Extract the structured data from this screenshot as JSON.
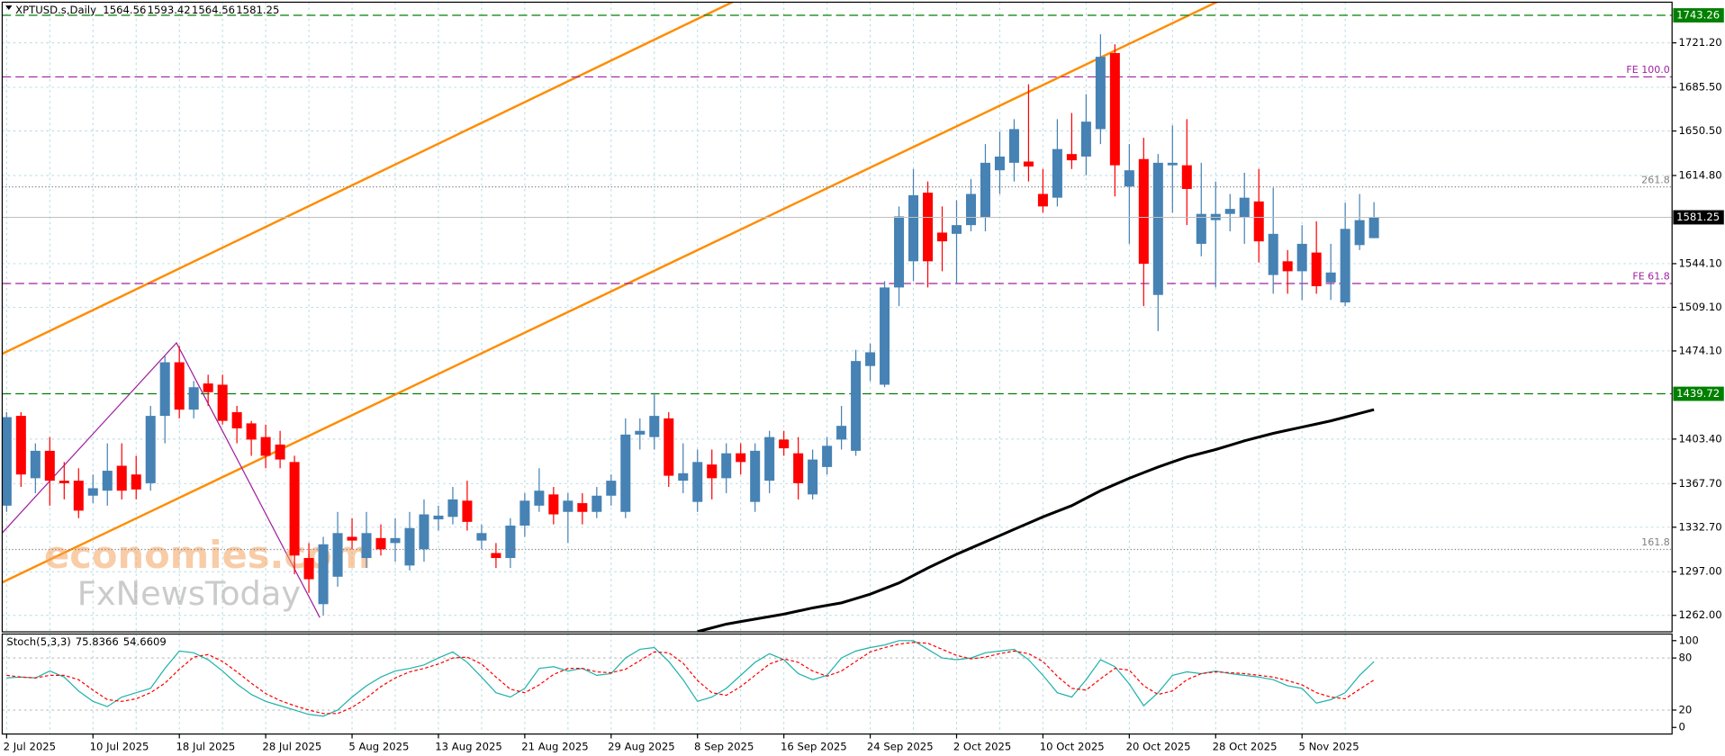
{
  "chart_data": [
    {
      "type": "candlestick",
      "title": "XPTUSD.s,Daily",
      "categories": [
        "2 Jul 2025",
        null,
        null,
        null,
        null,
        null,
        "10 Jul 2025",
        null,
        null,
        null,
        null,
        null,
        "18 Jul 2025",
        null,
        null,
        null,
        null,
        null,
        "28 Jul 2025",
        null,
        null,
        null,
        null,
        null,
        "5 Aug 2025",
        null,
        null,
        null,
        null,
        null,
        "13 Aug 2025",
        null,
        null,
        null,
        null,
        null,
        "21 Aug 2025",
        null,
        null,
        null,
        null,
        null,
        "29 Aug 2025",
        null,
        null,
        null,
        null,
        null,
        "8 Sep 2025",
        null,
        null,
        null,
        null,
        null,
        "16 Sep 2025",
        null,
        null,
        null,
        null,
        null,
        "24 Sep 2025",
        null,
        null,
        null,
        null,
        null,
        "2 Oct 2025",
        null,
        null,
        null,
        null,
        null,
        "10 Oct 2025",
        null,
        null,
        null,
        null,
        null,
        "20 Oct 2025",
        null,
        null,
        null,
        null,
        null,
        "28 Oct 2025",
        null,
        null,
        null,
        null,
        null,
        "5 Nov 2025",
        null,
        null,
        null,
        null,
        null
      ],
      "open": [
        1350,
        1422,
        1372,
        1394,
        1370,
        1370,
        1358,
        1362,
        1382,
        1375,
        1368,
        1422,
        1465,
        1427,
        1448,
        1447,
        1425,
        1416,
        1405,
        1399,
        1385,
        1308,
        1271,
        1293,
        1325,
        1308,
        1324,
        1320,
        1302,
        1315,
        1339,
        1341,
        1354,
        1322,
        1312,
        1308,
        1334,
        1350,
        1359,
        1345,
        1352,
        1345,
        1358,
        1345,
        1407,
        1405,
        1420,
        1370,
        1353,
        1383,
        1372,
        1392,
        1353,
        1370,
        1403,
        1392,
        1359,
        1381,
        1403,
        1394,
        1462,
        1447,
        1525,
        1546,
        1601,
        1569,
        1568,
        1575,
        1581,
        1619,
        1625,
        1626,
        1600,
        1597,
        1632,
        1630,
        1652,
        1713,
        1606,
        1628,
        1519,
        1623,
        1623,
        1560,
        1579,
        1584,
        1581,
        1594,
        1535,
        1546,
        1538,
        1553,
        1529,
        1513,
        1559,
        1564.56
      ],
      "high": [
        1425,
        1425,
        1400,
        1405,
        1385,
        1380,
        1375,
        1400,
        1400,
        1390,
        1430,
        1470,
        1478,
        1450,
        1455,
        1455,
        1430,
        1418,
        1415,
        1410,
        1390,
        1320,
        1325,
        1345,
        1340,
        1345,
        1335,
        1340,
        1345,
        1355,
        1350,
        1365,
        1370,
        1335,
        1320,
        1340,
        1360,
        1380,
        1365,
        1360,
        1360,
        1365,
        1375,
        1420,
        1420,
        1440,
        1425,
        1400,
        1395,
        1395,
        1400,
        1400,
        1400,
        1410,
        1410,
        1405,
        1395,
        1405,
        1430,
        1475,
        1480,
        1530,
        1590,
        1620,
        1610,
        1590,
        1595,
        1612,
        1640,
        1650,
        1660,
        1688,
        1620,
        1660,
        1665,
        1680,
        1728,
        1720,
        1640,
        1645,
        1632,
        1655,
        1660,
        1625,
        1610,
        1600,
        1617,
        1620,
        1605,
        1555,
        1575,
        1578,
        1560,
        1593,
        1600,
        1593.42
      ],
      "low": [
        1345,
        1365,
        1360,
        1350,
        1355,
        1340,
        1352,
        1350,
        1355,
        1355,
        1362,
        1400,
        1420,
        1420,
        1430,
        1415,
        1400,
        1390,
        1380,
        1380,
        1295,
        1280,
        1262,
        1285,
        1315,
        1300,
        1310,
        1305,
        1298,
        1305,
        1330,
        1335,
        1330,
        1315,
        1300,
        1300,
        1325,
        1345,
        1335,
        1320,
        1335,
        1340,
        1350,
        1340,
        1395,
        1395,
        1365,
        1360,
        1345,
        1355,
        1360,
        1375,
        1345,
        1360,
        1390,
        1355,
        1355,
        1375,
        1395,
        1390,
        1450,
        1445,
        1510,
        1530,
        1525,
        1538,
        1528,
        1570,
        1570,
        1600,
        1610,
        1610,
        1585,
        1590,
        1620,
        1615,
        1640,
        1598,
        1560,
        1510,
        1490,
        1585,
        1575,
        1550,
        1525,
        1570,
        1560,
        1545,
        1520,
        1520,
        1515,
        1520,
        1515,
        1510,
        1555,
        1564.56
      ],
      "close": [
        1421,
        1375,
        1394,
        1370,
        1368,
        1346,
        1364,
        1378,
        1362,
        1363,
        1422,
        1465,
        1427,
        1445,
        1441,
        1418,
        1412,
        1403,
        1390,
        1387,
        1310,
        1291,
        1319,
        1328,
        1322,
        1328,
        1315,
        1324,
        1332,
        1343,
        1342,
        1355,
        1337,
        1328,
        1308,
        1334,
        1354,
        1362,
        1343,
        1354,
        1345,
        1358,
        1370,
        1407,
        1410,
        1422,
        1374,
        1376,
        1385,
        1372,
        1392,
        1385,
        1394,
        1405,
        1396,
        1368,
        1387,
        1398,
        1414,
        1466,
        1473,
        1525,
        1582,
        1599,
        1546,
        1562,
        1575,
        1600,
        1625,
        1630,
        1652,
        1622,
        1590,
        1636,
        1627,
        1658,
        1710,
        1623,
        1619,
        1544,
        1625,
        1625,
        1604,
        1584,
        1584,
        1588,
        1597,
        1562,
        1568,
        1538,
        1560,
        1526,
        1537,
        1572,
        1579,
        1581.25
      ],
      "up_color": "#4682b4",
      "down_color": "#ff0000",
      "moving_average": {
        "color": "#000000",
        "values": [
          null,
          null,
          null,
          null,
          null,
          null,
          null,
          null,
          null,
          null,
          null,
          null,
          null,
          null,
          null,
          null,
          null,
          null,
          null,
          null,
          null,
          null,
          null,
          null,
          null,
          null,
          null,
          null,
          null,
          null,
          null,
          null,
          null,
          null,
          null,
          null,
          null,
          null,
          null,
          null,
          null,
          null,
          null,
          null,
          null,
          null,
          null,
          null,
          1249,
          1252,
          1255,
          1257,
          1259,
          1261,
          1263,
          1265.5,
          1268,
          1270,
          1272,
          1275.5,
          1279,
          1283.5,
          1288,
          1294,
          1300,
          1305.5,
          1311,
          1316,
          1321,
          1326,
          1331,
          1336,
          1341,
          1345.5,
          1350,
          1356,
          1362,
          1367,
          1372,
          1376.5,
          1381,
          1385,
          1389,
          1392,
          1395,
          1398.5,
          1402,
          1405,
          1408,
          1410.5,
          1413,
          1415.5,
          1418,
          1421,
          1424,
          1427
        ]
      },
      "ylim": [
        1248.8,
        1753.8
      ],
      "yticks": [
        {
          "value": 1262,
          "label": "1262.00"
        },
        {
          "value": 1297,
          "label": "1297.00"
        },
        {
          "value": 1332.7,
          "label": "1332.70"
        },
        {
          "value": 1367.7,
          "label": "1367.70"
        },
        {
          "value": 1403.4,
          "label": "1403.40"
        },
        {
          "value": 1474.1,
          "label": "1474.10"
        },
        {
          "value": 1509.1,
          "label": "1509.10"
        },
        {
          "value": 1544.1,
          "label": "1544.10"
        },
        {
          "value": 1614.8,
          "label": "1614.80"
        },
        {
          "value": 1650.5,
          "label": "1650.50"
        },
        {
          "value": 1685.5,
          "label": "1685.50"
        },
        {
          "value": 1721.2,
          "label": "1721.20"
        }
      ],
      "grid": true,
      "hlines": [
        {
          "value": 1743.26,
          "color": "#008000"
        },
        {
          "value": 1439.72,
          "color": "#008000"
        }
      ],
      "levels": [
        {
          "label": "FE 100.0",
          "value": 1693.9,
          "color": "#a020a0"
        },
        {
          "label": "261.8",
          "value": 1605.7,
          "color": "#808080"
        },
        {
          "label": "FE 61.8",
          "value": 1528.2,
          "color": "#a020a0"
        },
        {
          "label": "161.8",
          "value": 1314.9,
          "color": "#808080"
        }
      ],
      "watermark": [
        "economies.com",
        "FxNewsToday"
      ]
    },
    {
      "type": "line",
      "title": "Stoch(5,3,3)",
      "series": [
        {
          "color": "#20b2aa",
          "values": [
            57,
            58,
            57,
            65,
            58,
            42,
            30,
            24,
            35,
            40,
            45,
            68,
            88,
            86,
            78,
            65,
            50,
            38,
            30,
            25,
            20,
            15,
            13,
            20,
            35,
            48,
            58,
            65,
            68,
            72,
            80,
            87,
            75,
            58,
            40,
            35,
            45,
            68,
            70,
            65,
            68,
            60,
            62,
            80,
            90,
            92,
            76,
            55,
            30,
            35,
            45,
            60,
            75,
            85,
            78,
            62,
            55,
            60,
            80,
            88,
            92,
            95,
            100,
            100,
            90,
            80,
            78,
            80,
            86,
            88,
            90,
            78,
            60,
            40,
            35,
            55,
            78,
            70,
            50,
            25,
            40,
            60,
            64,
            62,
            65,
            62,
            60,
            58,
            55,
            48,
            45,
            28,
            32,
            40,
            60,
            75.8366
          ]
        },
        {
          "color": "#ff0000",
          "dashed": true,
          "values": [
            60,
            58,
            57,
            60,
            60,
            55,
            43,
            32,
            30,
            33,
            40,
            51,
            67,
            81,
            84,
            76,
            64,
            51,
            39,
            31,
            25,
            20,
            16,
            16,
            23,
            34,
            47,
            57,
            64,
            68,
            73,
            80,
            81,
            73,
            58,
            44,
            40,
            49,
            61,
            68,
            68,
            64,
            63,
            67,
            77,
            87,
            86,
            74,
            54,
            40,
            37,
            47,
            60,
            73,
            79,
            75,
            65,
            59,
            65,
            76,
            87,
            92,
            96,
            98,
            97,
            90,
            83,
            79,
            81,
            85,
            88,
            85,
            76,
            59,
            45,
            43,
            56,
            68,
            66,
            48,
            38,
            42,
            55,
            62,
            64,
            63,
            62,
            60,
            58,
            54,
            49,
            40,
            35,
            33,
            44,
            54.6609
          ]
        }
      ],
      "ylim": [
        -7.6,
        107.6
      ],
      "yticks": [
        0,
        20,
        80,
        100
      ]
    }
  ]
}
